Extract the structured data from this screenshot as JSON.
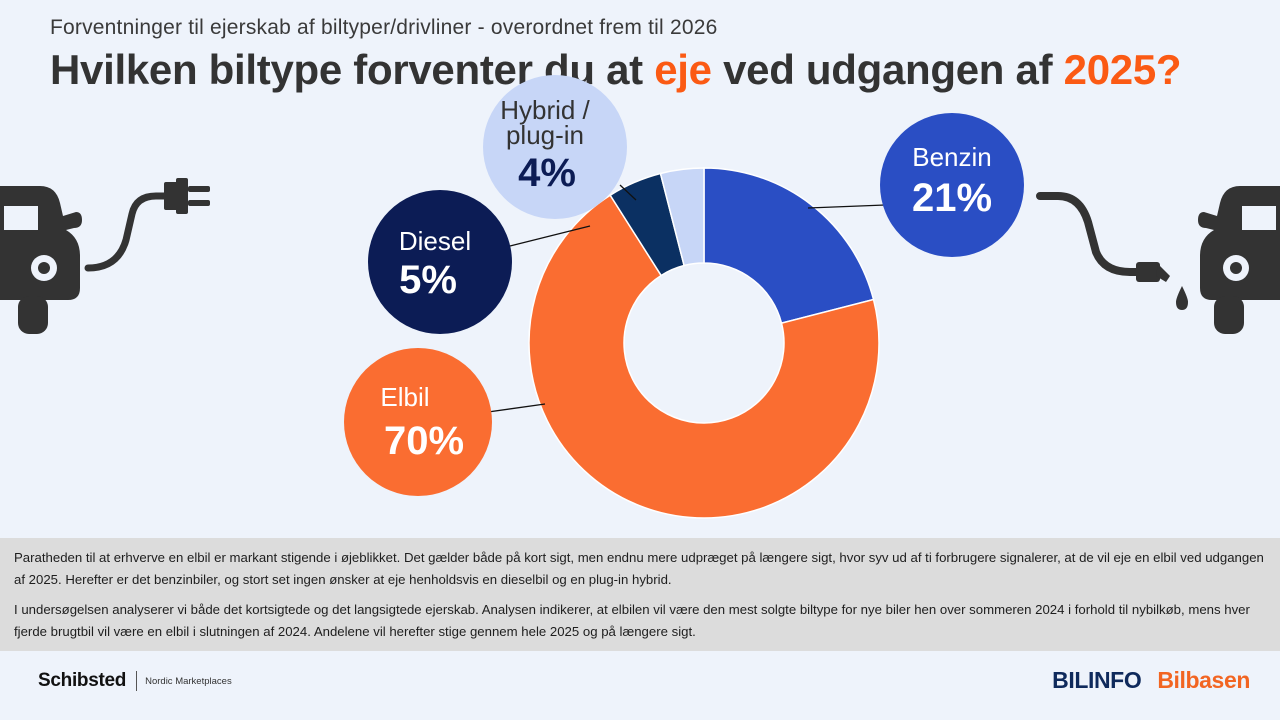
{
  "header": {
    "subtitle": "Forventninger til ejerskab af biltyper/drivliner - overordnet frem til 2026",
    "title_part1": "Hvilken biltype forventer du at ",
    "title_highlight1": "eje",
    "title_part2": " ved udgangen af ",
    "title_highlight2": "2025?"
  },
  "chart_data": {
    "type": "pie",
    "variant": "donut",
    "categories": [
      "Benzin",
      "Elbil",
      "Diesel",
      "Hybrid / plug-in"
    ],
    "values": [
      21,
      70,
      5,
      4
    ],
    "unit": "%",
    "labels": {
      "benzin": {
        "name": "Benzin",
        "pct": "21%"
      },
      "elbil": {
        "name": "Elbil",
        "pct": "70%"
      },
      "diesel": {
        "name": "Diesel",
        "pct": "5%"
      },
      "hybrid": {
        "name_line1": "Hybrid /",
        "name_line2": "plug-in",
        "pct": "4%"
      }
    },
    "colors": {
      "Benzin": "#2a4ec4",
      "Elbil": "#fa6d31",
      "Diesel": "#0b3062",
      "Hybrid / plug-in": "#c7d6f7"
    },
    "bubble_colors": {
      "Benzin": "#2a4ec4",
      "Elbil": "#fa6d31",
      "Diesel": "#0c1c55",
      "Hybrid / plug-in": "#c7d6f7"
    }
  },
  "icons": {
    "left": "electric-car-plug-icon",
    "right": "fuel-car-pump-icon"
  },
  "notes": {
    "paragraph1": "Paratheden til at erhverve en elbil er markant stigende i øjeblikket. Det gælder både på kort sigt, men endnu mere udpræget på længere sigt, hvor syv ud af ti forbrugere signalerer, at de vil eje en elbil ved udgangen af 2025. Herefter er det benzinbiler, og stort set ingen ønsker at eje henholdsvis en dieselbil og en plug-in hybrid.",
    "paragraph2": "I undersøgelsen analyserer vi både det kortsigtede og det langsigtede ejerskab. Analysen indikerer, at elbilen vil være den mest solgte biltype for nye biler hen over sommeren 2024 i forhold til nybilkøb, mens hver fjerde brugtbil vil være en elbil i slutningen af 2024. Andelene vil herefter stige gennem hele 2025 og på længere sigt."
  },
  "footer": {
    "schibsted": "Schibsted",
    "nordic": "Nordic Marketplaces",
    "bilinfo": "BILINFO",
    "bilbasen": "Bilbasen"
  }
}
